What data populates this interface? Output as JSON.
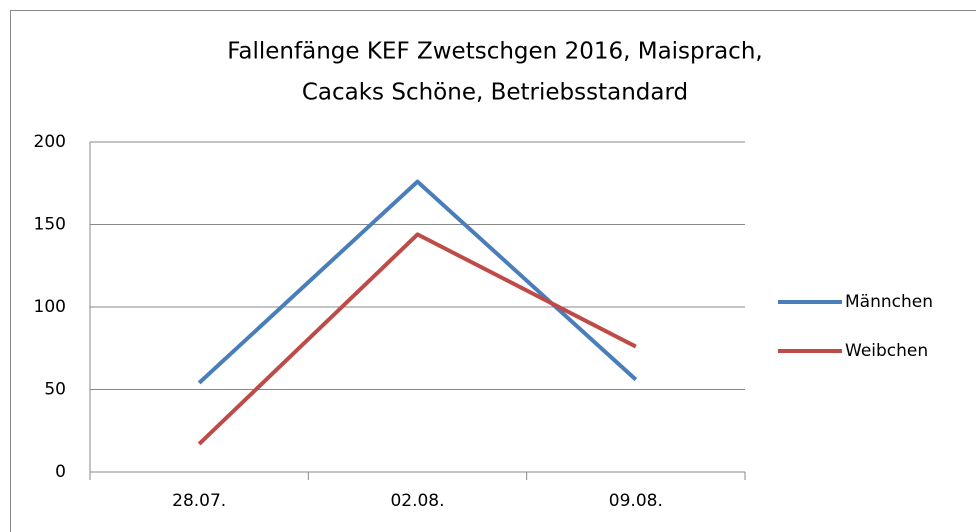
{
  "chart_data": {
    "type": "line",
    "title": [
      "Fallenfänge KEF Zwetschgen 2016, Maisprach,",
      "Cacaks  Schöne,  Betriebsstandard"
    ],
    "categories": [
      "28.07.",
      "02.08.",
      "09.08."
    ],
    "series": [
      {
        "name": "Männchen",
        "color": "#4a7ebb",
        "values": [
          54,
          176,
          56
        ]
      },
      {
        "name": "Weibchen",
        "color": "#be4b48",
        "values": [
          17,
          144,
          76
        ]
      }
    ],
    "ylim": [
      0,
      200
    ],
    "yticks": [
      0,
      50,
      100,
      150,
      200
    ],
    "grid": true,
    "legend": "right"
  }
}
